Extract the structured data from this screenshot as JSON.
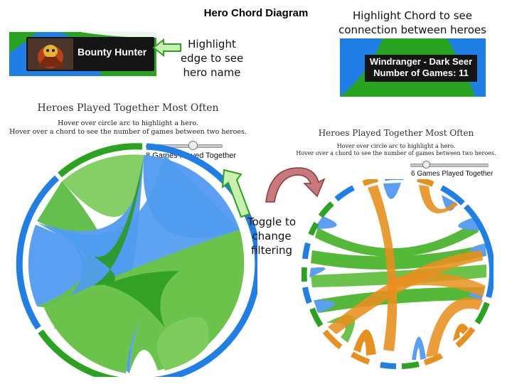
{
  "slide_title": "Hero Chord Diagram",
  "edge_callout": [
    "Highlight",
    "edge to see",
    "hero name"
  ],
  "chord_callout": [
    "Highlight Chord to see",
    "connection between heroes"
  ],
  "toggle_callout": [
    "Toggle to",
    "change",
    "filtering"
  ],
  "hero_tooltip": {
    "name": "Bounty Hunter"
  },
  "chord_tooltip": {
    "line1": "Windranger - Dark Seer",
    "line2": "Number of Games: 11"
  },
  "left_panel": {
    "title": "Heroes Played Together Most Often",
    "instruction1": "Hover over circle arc to highlight a hero.",
    "instruction2": "Hover over a chord to see the number of games between two heroes.",
    "slider_label": "8 Games Played Together",
    "slider_value": 8
  },
  "right_panel": {
    "title": "Heroes Played Together Most Often",
    "instruction1": "Hover over circle arc to highlight a hero.",
    "instruction2": "Hover over a chord to see the number of games between two heroes.",
    "slider_label": "6 Games Played Together",
    "slider_value": 6
  },
  "colors": {
    "blue": "#1f7fe6",
    "green": "#2aa320",
    "orange": "#e8901e",
    "arrow_green": "#c9f0ae",
    "arrow_red": "#c9797c"
  }
}
